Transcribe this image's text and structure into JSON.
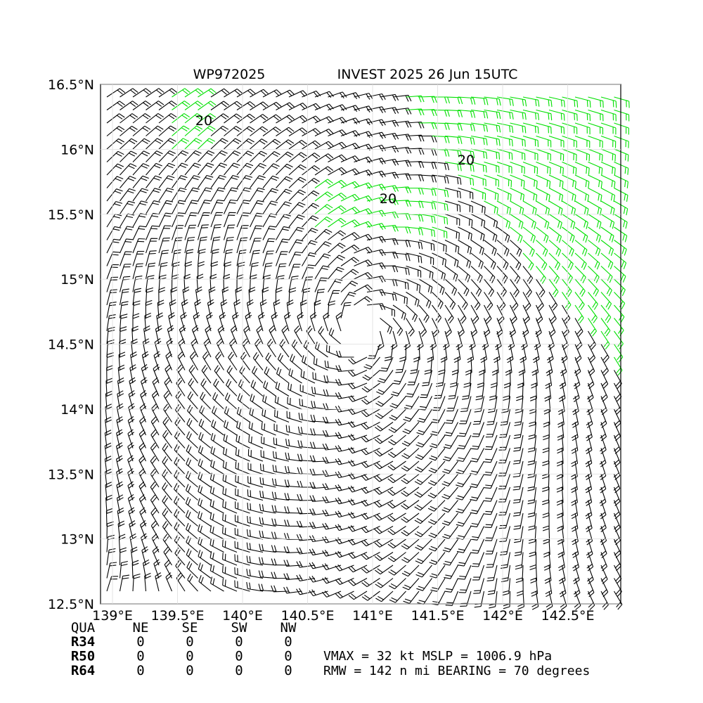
{
  "map": {
    "title_left": "WP972025",
    "title_right": "INVEST 2025 26 Jun 15UTC",
    "xlim": [
      138.908,
      142.908
    ],
    "ylim": [
      12.5,
      16.5
    ],
    "xticks": [
      {
        "value": 139,
        "label": "139°E"
      },
      {
        "value": 139.5,
        "label": "139.5°E"
      },
      {
        "value": 140,
        "label": "140°E"
      },
      {
        "value": 140.5,
        "label": "140.5°E"
      },
      {
        "value": 141,
        "label": "141°E"
      },
      {
        "value": 141.5,
        "label": "141.5°E"
      },
      {
        "value": 142,
        "label": "142°E"
      },
      {
        "value": 142.5,
        "label": "142.5°E"
      }
    ],
    "yticks": [
      {
        "value": 12.5,
        "label": "12.5°N"
      },
      {
        "value": 13,
        "label": "13°N"
      },
      {
        "value": 13.5,
        "label": "13.5°N"
      },
      {
        "value": 14,
        "label": "14°N"
      },
      {
        "value": 14.5,
        "label": "14.5°N"
      },
      {
        "value": 15,
        "label": "15°N"
      },
      {
        "value": 15.5,
        "label": "15.5°N"
      },
      {
        "value": 16,
        "label": "16°N"
      },
      {
        "value": 16.5,
        "label": "16.5°N"
      }
    ],
    "contour_labels": [
      "20",
      "20",
      "20"
    ]
  },
  "table": {
    "header": [
      "QUA",
      "NE",
      "SE",
      "SW",
      "NW"
    ],
    "rows": [
      [
        "R34",
        "0",
        "0",
        "0",
        "0"
      ],
      [
        "R50",
        "0",
        "0",
        "0",
        "0"
      ],
      [
        "R64",
        "0",
        "0",
        "0",
        "0"
      ]
    ]
  },
  "info": [
    "VMAX =  32 kt MSLP = 1006.9 hPa",
    "RMW = 142 n mi BEARING =  70 degrees"
  ]
}
